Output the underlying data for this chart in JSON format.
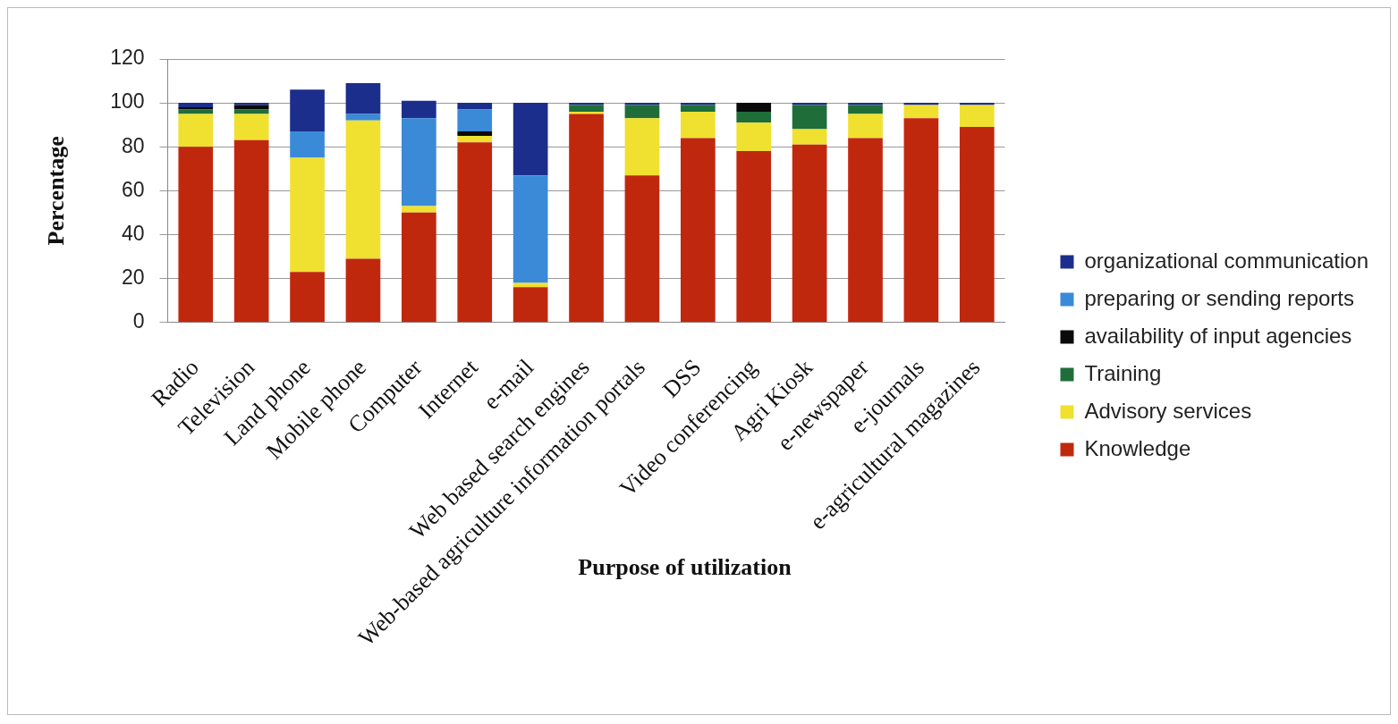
{
  "chart_data": {
    "type": "bar",
    "stacked": true,
    "xlabel": "Purpose of utilization",
    "ylabel": "Percentage",
    "categories": [
      "Radio",
      "Television",
      "Land phone",
      "Mobile phone",
      "Computer",
      "Internet",
      "e-mail",
      "Web based search engines",
      "Web-based agriculture information portals",
      "DSS",
      "Video conferencing",
      "Agri Kiosk",
      "e-newspaper",
      "e-journals",
      "e-agricultural magazines"
    ],
    "series": [
      {
        "name": "Knowledge",
        "color": "#c0280e",
        "values": [
          80,
          83,
          23,
          29,
          50,
          82,
          16,
          95,
          67,
          84,
          78,
          81,
          84,
          93,
          89
        ]
      },
      {
        "name": "Advisory services",
        "color": "#f0e030",
        "values": [
          15,
          12,
          52,
          63,
          3,
          3,
          2,
          1,
          26,
          12,
          13,
          7,
          11,
          6,
          10
        ]
      },
      {
        "name": "Training",
        "color": "#1f6e3a",
        "values": [
          2,
          2,
          null,
          null,
          null,
          null,
          null,
          3,
          6,
          3,
          5,
          11,
          4,
          null,
          null
        ]
      },
      {
        "name": "availability of input agencies",
        "color": "#0a0a0a",
        "values": [
          1,
          2,
          null,
          null,
          null,
          2,
          null,
          null,
          null,
          null,
          4,
          null,
          null,
          null,
          null
        ]
      },
      {
        "name": "preparing or sending reports",
        "color": "#3a8ad8",
        "values": [
          null,
          null,
          12,
          3,
          40,
          10,
          49,
          null,
          null,
          null,
          null,
          null,
          null,
          null,
          null
        ]
      },
      {
        "name": "organizational communication",
        "color": "#1c2e8c",
        "values": [
          2,
          1,
          19,
          14,
          8,
          3,
          33,
          1,
          1,
          1,
          null,
          1,
          1,
          1,
          1
        ]
      }
    ],
    "ylim": [
      0,
      120
    ],
    "yticks": [
      0,
      20,
      40,
      60,
      80,
      100,
      120
    ],
    "grid": "y",
    "legend": "right"
  }
}
